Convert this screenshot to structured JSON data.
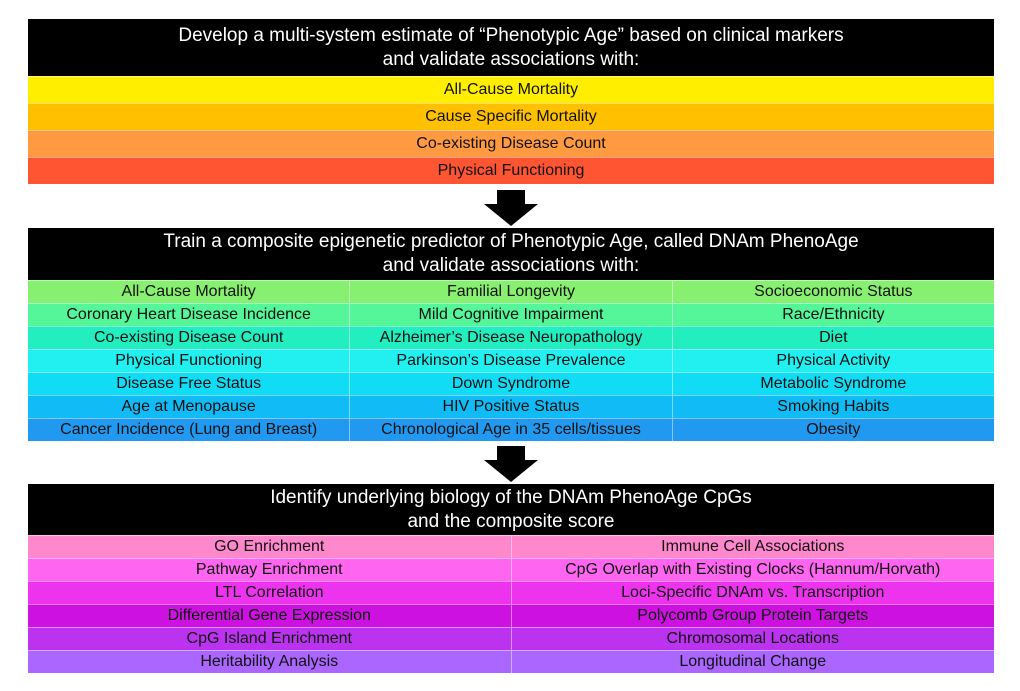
{
  "box1": {
    "title": [
      "Develop a multi-system estimate of “Phenotypic Age” based on clinical markers",
      "and validate associations with:"
    ],
    "rows": [
      {
        "color": "#ffee00",
        "cells": [
          "All-Cause Mortality"
        ]
      },
      {
        "color": "#ffc000",
        "cells": [
          "Cause Specific Mortality"
        ]
      },
      {
        "color": "#ff9a40",
        "cells": [
          "Co-existing Disease Count"
        ]
      },
      {
        "color": "#ff5533",
        "cells": [
          "Physical Functioning"
        ]
      }
    ]
  },
  "box2": {
    "title": [
      "Train a composite epigenetic predictor of Phenotypic Age, called DNAm PhenoAge",
      "and validate associations with:"
    ],
    "rows": [
      {
        "color": "#88f070",
        "cells": [
          "All-Cause Mortality",
          "Familial Longevity",
          "Socioeconomic Status"
        ]
      },
      {
        "color": "#55f59a",
        "cells": [
          "Coronary Heart Disease Incidence",
          "Mild Cognitive Impairment",
          "Race/Ethnicity"
        ]
      },
      {
        "color": "#22eec0",
        "cells": [
          "Co-existing Disease Count",
          "Alzheimer’s Disease Neuropathology",
          "Diet"
        ]
      },
      {
        "color": "#22f0f0",
        "cells": [
          "Physical Functioning",
          "Parkinson’s Disease Prevalence",
          "Physical Activity"
        ]
      },
      {
        "color": "#11dcf5",
        "cells": [
          "Disease Free Status",
          "Down Syndrome",
          "Metabolic Syndrome"
        ]
      },
      {
        "color": "#11bbf5",
        "cells": [
          "Age at Menopause",
          "HIV Positive Status",
          "Smoking Habits"
        ]
      },
      {
        "color": "#2299f0",
        "cells": [
          "Cancer Incidence (Lung and Breast)",
          "Chronological Age in 35 cells/tissues",
          "Obesity"
        ]
      }
    ]
  },
  "box3": {
    "title": [
      "Identify underlying biology of the DNAm PhenoAge CpGs",
      "and the composite score"
    ],
    "rows": [
      {
        "color": "#ff88cc",
        "cells": [
          "GO Enrichment",
          "Immune Cell Associations"
        ]
      },
      {
        "color": "#ff66f0",
        "cells": [
          "Pathway Enrichment",
          "CpG Overlap with Existing Clocks (Hannum/Horvath)"
        ]
      },
      {
        "color": "#ee33ee",
        "cells": [
          "LTL Correlation",
          "Loci-Specific DNAm vs. Transcription"
        ]
      },
      {
        "color": "#cc11e0",
        "cells": [
          "Differential Gene Expression",
          "Polycomb Group Protein Targets"
        ]
      },
      {
        "color": "#bb33ee",
        "cells": [
          "CpG Island Enrichment",
          "Chromosomal Locations"
        ]
      },
      {
        "color": "#aa66ff",
        "cells": [
          "Heritability Analysis",
          "Longitudinal Change"
        ]
      }
    ]
  }
}
